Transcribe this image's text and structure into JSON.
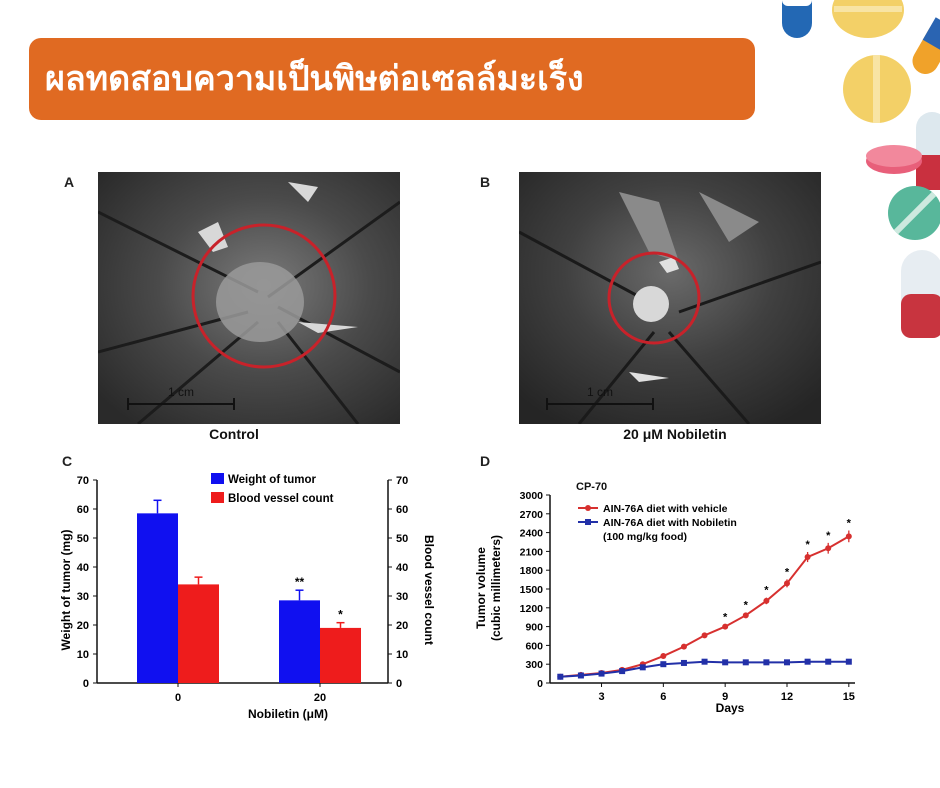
{
  "banner": {
    "title": "ผลทดสอบความเป็นพิษต่อเซลล์มะเร็ง"
  },
  "panels": {
    "A": {
      "letter": "A",
      "caption": "Control",
      "scale_label": "1 cm"
    },
    "B": {
      "letter": "B",
      "caption": "20 μM Nobiletin",
      "scale_label": "1 cm"
    },
    "C": {
      "letter": "C"
    },
    "D": {
      "letter": "D"
    }
  },
  "colors": {
    "banner": "#e06a22",
    "blue": "#1010f0",
    "red": "#ee1c1c",
    "line_red": "#d7302f",
    "line_blue": "#2230a8"
  },
  "chart_data": [
    {
      "type": "bar",
      "panel": "C",
      "categories": [
        "0",
        "20"
      ],
      "xlabel": "Nobiletin (μM)",
      "ylabel": "Weight of tumor (mg)",
      "ylabel_right": "Blood vessel count",
      "ylim": [
        0,
        70
      ],
      "yticks": [
        "0",
        "10",
        "20",
        "30",
        "40",
        "50",
        "60",
        "70"
      ],
      "legend_position": "top-right",
      "series": [
        {
          "name": "Weight of tumor",
          "values": [
            58.5,
            28.5
          ],
          "errors": [
            4.5,
            3.5
          ],
          "marks": [
            "",
            "**"
          ],
          "color": "#1010f0"
        },
        {
          "name": "Blood vessel count",
          "values": [
            34,
            19
          ],
          "errors": [
            2.5,
            1.8
          ],
          "marks": [
            "",
            "*"
          ],
          "color": "#ee1c1c"
        }
      ]
    },
    {
      "type": "line",
      "panel": "D",
      "annotation": "CP-70",
      "xlabel": "Days",
      "ylabel": "Tumor volume (cubic millimeters)",
      "xlim": [
        0.5,
        15.3
      ],
      "ylim": [
        0,
        3000
      ],
      "xticks": [
        "3",
        "6",
        "9",
        "12",
        "15"
      ],
      "yticks": [
        "0",
        "300",
        "600",
        "900",
        "1200",
        "1500",
        "1800",
        "2100",
        "2400",
        "2700",
        "3000"
      ],
      "legend_position": "top-left",
      "x": [
        1,
        2,
        3,
        4,
        5,
        6,
        7,
        8,
        9,
        10,
        11,
        12,
        13,
        14,
        15
      ],
      "series": [
        {
          "name": "AIN-76A diet with vehicle",
          "values": [
            100,
            130,
            160,
            210,
            300,
            430,
            580,
            760,
            900,
            1080,
            1310,
            1590,
            2010,
            2150,
            2340
          ],
          "significant": [
            false,
            false,
            false,
            false,
            false,
            false,
            false,
            false,
            true,
            true,
            true,
            true,
            true,
            true,
            true
          ],
          "color": "#d7302f"
        },
        {
          "name": "AIN-76A diet with Nobiletin (100 mg/kg food)",
          "values": [
            100,
            120,
            150,
            190,
            250,
            300,
            320,
            340,
            330,
            330,
            330,
            330,
            340,
            340,
            340
          ],
          "color": "#2230a8"
        }
      ]
    }
  ]
}
